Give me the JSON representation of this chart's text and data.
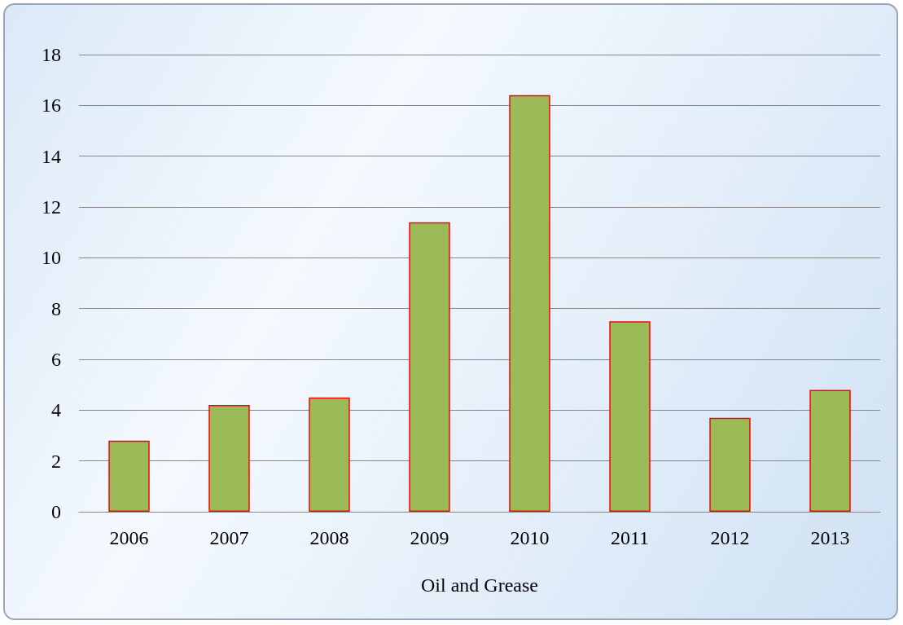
{
  "chart_data": {
    "type": "bar",
    "xlabel": "Oil and Grease",
    "categories": [
      "2006",
      "2007",
      "2008",
      "2009",
      "2010",
      "2011",
      "2012",
      "2013"
    ],
    "values": [
      2.8,
      4.2,
      4.5,
      11.4,
      16.4,
      7.5,
      3.7,
      4.8
    ],
    "color": "#9bbb59",
    "ylim": [
      0,
      18
    ],
    "yticks": [
      0,
      2,
      4,
      6,
      8,
      10,
      12,
      14,
      16,
      18
    ],
    "grid": "y"
  }
}
